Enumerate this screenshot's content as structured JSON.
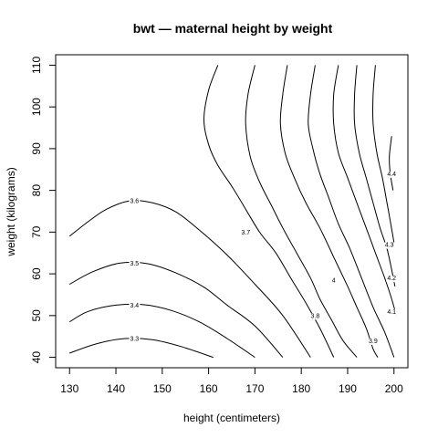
{
  "chart_data": {
    "type": "contour",
    "title": "bwt — maternal height by weight",
    "xlabel": "height (centimeters)",
    "ylabel": "weight (kilograms)",
    "xlim": [
      127,
      203
    ],
    "ylim": [
      37.5,
      112.5
    ],
    "x_ticks": [
      130,
      140,
      150,
      160,
      170,
      180,
      190,
      200
    ],
    "y_ticks": [
      40,
      50,
      60,
      70,
      80,
      90,
      100,
      110
    ],
    "grid": false,
    "legend": "none",
    "line_color": "#000000",
    "contours": [
      {
        "level": "3.3",
        "points": [
          [
            130,
            41
          ],
          [
            136,
            43.3
          ],
          [
            142,
            44.5
          ],
          [
            148,
            44.2
          ],
          [
            154,
            42.6
          ],
          [
            161,
            40
          ]
        ],
        "label_at": [
          144,
          44.5
        ]
      },
      {
        "level": "3.4",
        "points": [
          [
            130,
            48.5
          ],
          [
            134,
            51
          ],
          [
            140,
            52.5
          ],
          [
            146,
            52.6
          ],
          [
            152,
            51.2
          ],
          [
            158,
            48.5
          ],
          [
            164,
            44.5
          ],
          [
            170,
            40
          ]
        ],
        "label_at": [
          144,
          52.5
        ]
      },
      {
        "level": "3.5",
        "points": [
          [
            130,
            57.5
          ],
          [
            135,
            60.5
          ],
          [
            141,
            62.6
          ],
          [
            147,
            62.4
          ],
          [
            153,
            60.2
          ],
          [
            159,
            56.8
          ],
          [
            164,
            52.5
          ],
          [
            170,
            47.5
          ],
          [
            176,
            40
          ]
        ],
        "label_at": [
          144,
          62.5
        ]
      },
      {
        "level": "3.6",
        "points": [
          [
            130,
            69
          ],
          [
            134,
            72.5
          ],
          [
            138,
            75.5
          ],
          [
            143,
            77.5
          ],
          [
            148,
            77
          ],
          [
            153,
            74.8
          ],
          [
            158,
            70.5
          ],
          [
            164,
            64.5
          ],
          [
            170,
            57.5
          ],
          [
            176,
            50
          ],
          [
            182,
            40
          ]
        ],
        "label_at": [
          144,
          77.5
        ]
      },
      {
        "level": "3.7",
        "points": [
          [
            162,
            110
          ],
          [
            160,
            104
          ],
          [
            159,
            97
          ],
          [
            160,
            91
          ],
          [
            162,
            86
          ],
          [
            165,
            81
          ],
          [
            168,
            75.5
          ],
          [
            171,
            70
          ],
          [
            174.5,
            65
          ],
          [
            178,
            58.5
          ],
          [
            181,
            53
          ],
          [
            184,
            47
          ],
          [
            187,
            40
          ]
        ],
        "label_at": [
          168,
          70
        ]
      },
      {
        "level": "3.8",
        "points": [
          [
            170,
            110
          ],
          [
            168.5,
            103
          ],
          [
            168,
            96
          ],
          [
            169,
            88
          ],
          [
            171,
            82
          ],
          [
            173.5,
            76.5
          ],
          [
            176,
            71
          ],
          [
            179,
            65
          ],
          [
            182,
            59
          ],
          [
            184,
            54
          ],
          [
            186.5,
            49
          ],
          [
            189,
            44
          ],
          [
            192,
            40
          ]
        ],
        "label_at": [
          183,
          50
        ]
      },
      {
        "level": "3.9",
        "points": [
          [
            177,
            110
          ],
          [
            176,
            103
          ],
          [
            175.5,
            96
          ],
          [
            176.5,
            89
          ],
          [
            178.5,
            83
          ],
          [
            181,
            77
          ],
          [
            184,
            71
          ],
          [
            187,
            64
          ],
          [
            190,
            57
          ],
          [
            192,
            52
          ],
          [
            194,
            47
          ],
          [
            195.5,
            42
          ],
          [
            196.5,
            40
          ]
        ],
        "label_at": [
          195.5,
          44
        ]
      },
      {
        "level": "4",
        "points": [
          [
            183,
            110
          ],
          [
            182,
            103
          ],
          [
            181.5,
            96
          ],
          [
            182.5,
            90
          ],
          [
            184,
            84
          ],
          [
            186,
            78
          ],
          [
            188,
            72
          ],
          [
            190.5,
            66
          ],
          [
            193,
            59
          ],
          [
            195.5,
            52
          ],
          [
            198,
            46
          ],
          [
            200,
            40
          ]
        ],
        "label_at": [
          187,
          58.5
        ]
      },
      {
        "level": "4.1",
        "points": [
          [
            188,
            110
          ],
          [
            187,
            103
          ],
          [
            187,
            96
          ],
          [
            188,
            89
          ],
          [
            190,
            83
          ],
          [
            192,
            77
          ],
          [
            194,
            71
          ],
          [
            196,
            65
          ],
          [
            198,
            59
          ],
          [
            199.5,
            54
          ],
          [
            200.5,
            50
          ]
        ],
        "label_at": [
          199.5,
          51
        ]
      },
      {
        "level": "4.2",
        "points": [
          [
            192,
            110
          ],
          [
            191.5,
            103
          ],
          [
            191.5,
            96
          ],
          [
            192.5,
            89
          ],
          [
            194,
            83
          ],
          [
            195.5,
            77
          ],
          [
            197,
            71
          ],
          [
            198.5,
            66
          ],
          [
            199.5,
            61
          ],
          [
            200.2,
            57
          ]
        ],
        "label_at": [
          199.5,
          59
        ]
      },
      {
        "level": "4.3",
        "points": [
          [
            196,
            110
          ],
          [
            195.5,
            103
          ],
          [
            195.5,
            96
          ],
          [
            196.3,
            89
          ],
          [
            197.5,
            83
          ],
          [
            198.5,
            77
          ],
          [
            199.3,
            72
          ],
          [
            200,
            67.5
          ]
        ],
        "label_at": [
          199,
          67
        ]
      },
      {
        "level": "4.4",
        "points": [
          [
            199.5,
            93
          ],
          [
            199,
            88
          ],
          [
            199.2,
            84
          ],
          [
            199.8,
            80
          ]
        ],
        "label_at": [
          199.5,
          84
        ]
      }
    ]
  }
}
